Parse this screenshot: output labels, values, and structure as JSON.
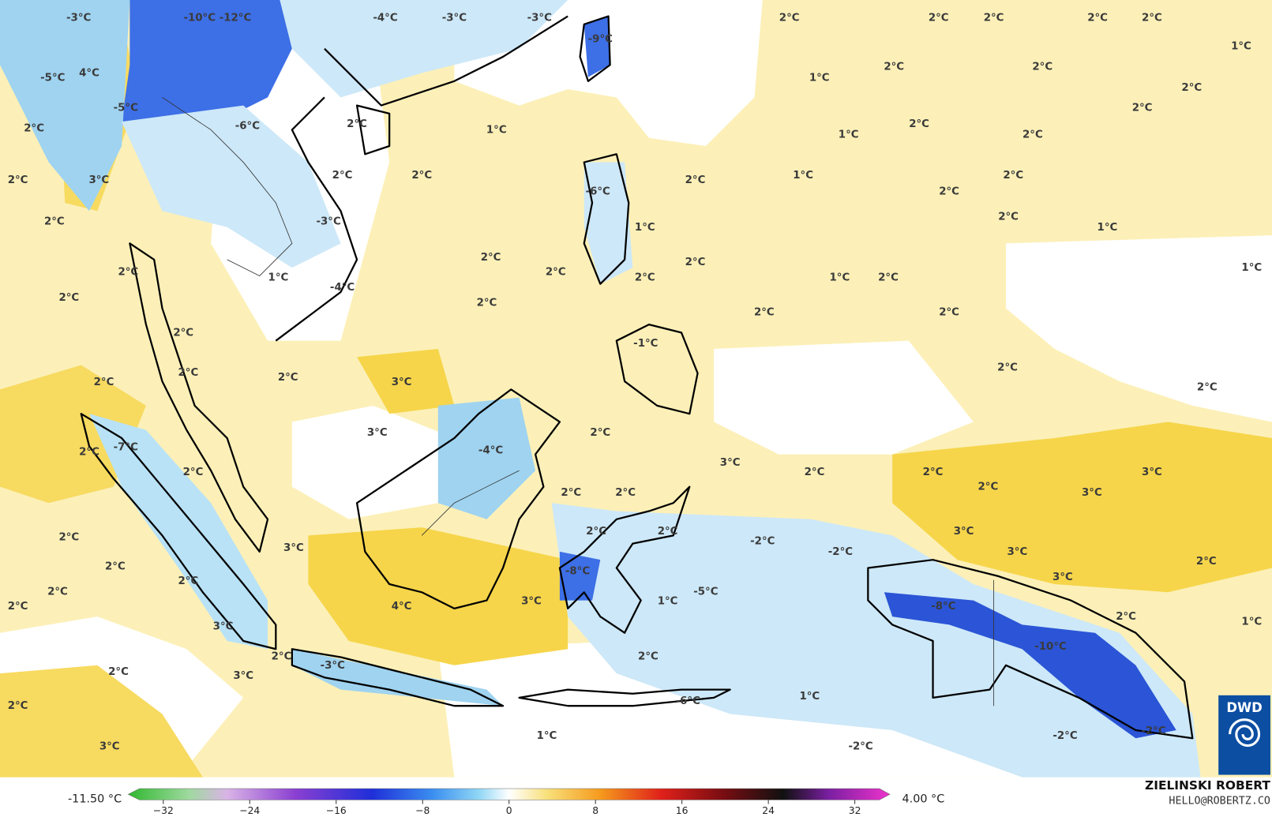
{
  "map": {
    "labels": [
      "-10°C -12°C",
      "-3°C",
      "-4°C",
      "-3°C",
      "-3°C",
      "-9°C",
      "2°C",
      "2°C",
      "2°C",
      "2°C",
      "2°C",
      "1°C",
      "2°C",
      "2°C",
      "1°C",
      "2°C",
      "4°C",
      "-5°C",
      "-5°C",
      "-6°C",
      "2°C",
      "2°C",
      "1°C",
      "1°C",
      "2°C",
      "2°C",
      "2°C",
      "2°C",
      "3°C",
      "2°C",
      "2°C",
      "2°C",
      "1°C",
      "2°C",
      "2°C",
      "-6°C",
      "2°C",
      "-3°C",
      "1°C",
      "2°C",
      "1°C",
      "2°C",
      "2°C",
      "2°C",
      "2°C",
      "1°C",
      "2°C",
      "1°C",
      "2°C",
      "1°C",
      "-4°C",
      "2°C",
      "2°C",
      "2°C",
      "2°C",
      "2°C",
      "-1°C",
      "2°C",
      "2°C",
      "2°C",
      "3°C",
      "2°C",
      "2°C",
      "3°C",
      "2°C",
      "2°C",
      "-7°C",
      "-4°C",
      "3°C",
      "2°C",
      "2°C",
      "3°C",
      "2°C",
      "2°C",
      "2°C",
      "2°C",
      "3°C",
      "2°C",
      "2°C",
      "2°C",
      "-2°C",
      "-2°C",
      "3°C",
      "3°C",
      "2°C",
      "3°C",
      "2°C",
      "2°C",
      "2°C",
      "-8°C",
      "-5°C",
      "3°C",
      "2°C",
      "4°C",
      "3°C",
      "1°C",
      "-8°C",
      "3°C",
      "2°C",
      "1°C",
      "2°C",
      "-3°C",
      "2°C",
      "-10°C",
      "2°C",
      "3°C",
      "-6°C",
      "1°C",
      "2°C",
      "1°C",
      "-2°C",
      "-2°C",
      "-2°C",
      "3°C"
    ]
  },
  "legend": {
    "min_label": "-11.50 °C",
    "max_label": "4.00 °C",
    "range": [
      -35.25,
      35.25
    ],
    "ticks": [
      {
        "value": -32,
        "label": "−32"
      },
      {
        "value": -24,
        "label": "−24"
      },
      {
        "value": -16,
        "label": "−16"
      },
      {
        "value": -8,
        "label": "−8"
      },
      0,
      8,
      16,
      24,
      32
    ]
  },
  "credit": {
    "name": "ZIELINSKI ROBERT",
    "email": "HELLO@ROBERTZ.CO"
  },
  "logo": "DWD"
}
